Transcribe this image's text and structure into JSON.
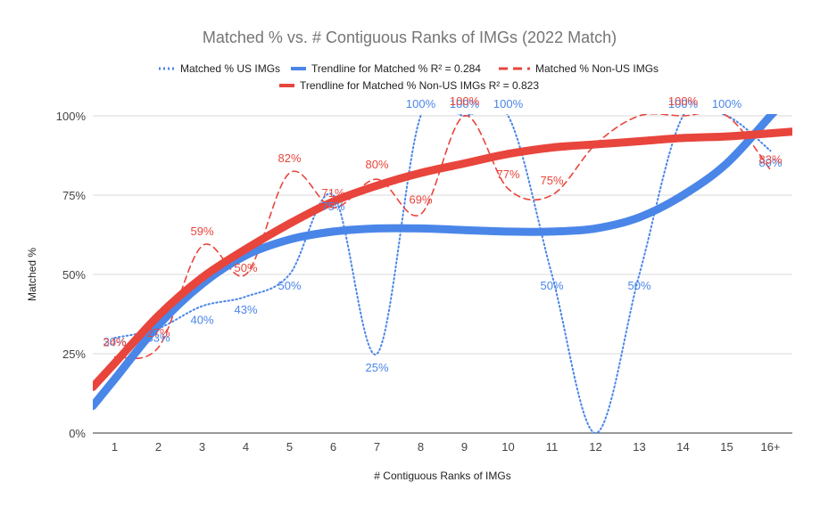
{
  "chart_data": {
    "type": "line",
    "title": "Matched % vs. # Contiguous Ranks of IMGs (2022 Match)",
    "xlabel": "# Contiguous Ranks of IMGs",
    "ylabel": "Matched %",
    "categories": [
      "1",
      "2",
      "3",
      "4",
      "5",
      "6",
      "7",
      "8",
      "9",
      "10",
      "11",
      "12",
      "13",
      "14",
      "15",
      "16+"
    ],
    "ylim": [
      0,
      100
    ],
    "yticks": [
      "0%",
      "25%",
      "50%",
      "75%",
      "100%"
    ],
    "grid": true,
    "legend_position": "top",
    "series": [
      {
        "name": "Matched % US IMGs",
        "style": "dotted",
        "color": "#4a86e8",
        "values": [
          30,
          33,
          40,
          43,
          50,
          75,
          25,
          100,
          100,
          100,
          50,
          0,
          50,
          100,
          100,
          89
        ],
        "labels": [
          "30%",
          "33%",
          "40%",
          "43%",
          "50%",
          "75%",
          "25%",
          "100%",
          "100%",
          "100%",
          "50%",
          "",
          "50%",
          "100%",
          "100%",
          "89%"
        ]
      },
      {
        "name": "Trendline for Matched % R² = 0.284",
        "style": "trendline",
        "color": "#4a86e8",
        "values": [
          17,
          34,
          47,
          56,
          61,
          63.5,
          64.5,
          64.5,
          64,
          63.5,
          63.5,
          64.5,
          68,
          75,
          85,
          100
        ]
      },
      {
        "name": "Matched % Non-US IMGs",
        "style": "dashed",
        "color": "#e8453c",
        "values": [
          24,
          27,
          59,
          50,
          82,
          71,
          80,
          69,
          100,
          77,
          75,
          91,
          100,
          100,
          100,
          83
        ],
        "labels": [
          "24%",
          "27%",
          "59%",
          "50%",
          "82%",
          "71%",
          "80%",
          "69%",
          "100%",
          "77%",
          "75%",
          "",
          "",
          "100%",
          "",
          "83%"
        ]
      },
      {
        "name": "Trendline for Matched % Non-US IMGs R² = 0.823",
        "style": "trendline",
        "color": "#e8453c",
        "values": [
          22,
          37,
          49,
          58,
          66,
          73,
          78,
          82,
          85,
          88,
          90,
          91,
          92,
          93,
          93.5,
          94.5
        ]
      }
    ]
  }
}
